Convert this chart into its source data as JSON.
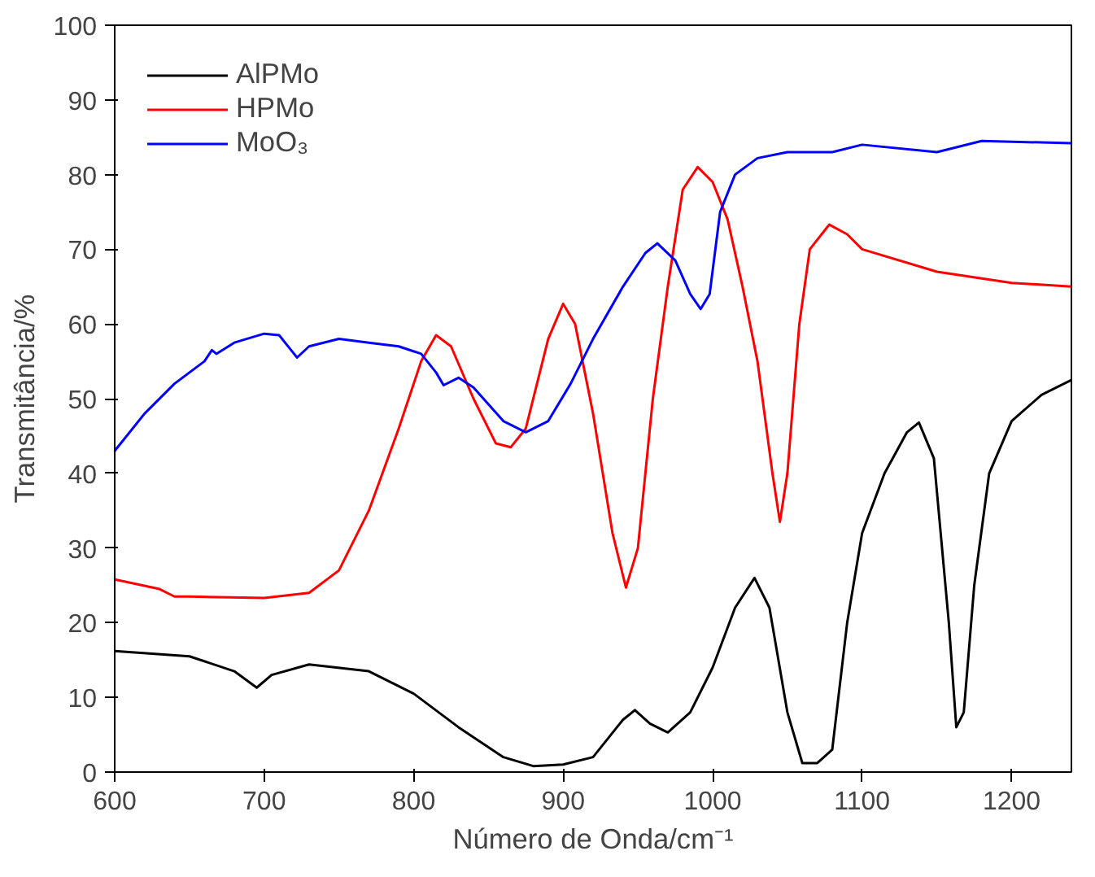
{
  "chart_data": {
    "type": "line",
    "xlabel": "Número de Onda/cm⁻¹",
    "ylabel": "Transmitância/%",
    "xlim": [
      600,
      1240
    ],
    "ylim": [
      0,
      100
    ],
    "xticks": [
      600,
      700,
      800,
      900,
      1000,
      1100,
      1200
    ],
    "yticks": [
      0,
      10,
      20,
      30,
      40,
      50,
      60,
      70,
      80,
      90,
      100
    ],
    "grid": false,
    "legend": "top left",
    "line_style": "solid",
    "series": [
      {
        "name": "AlPMo",
        "color": "#000000",
        "x": [
          600,
          650,
          680,
          695,
          705,
          730,
          770,
          800,
          830,
          860,
          880,
          900,
          920,
          940,
          948,
          958,
          970,
          985,
          1000,
          1015,
          1028,
          1038,
          1050,
          1060,
          1070,
          1080,
          1090,
          1100,
          1115,
          1130,
          1138,
          1148,
          1158,
          1163,
          1168,
          1175,
          1185,
          1200,
          1220,
          1240
        ],
        "values": [
          16.2,
          15.5,
          13.5,
          11.3,
          13,
          14.4,
          13.5,
          10.5,
          6,
          2,
          0.8,
          1,
          2,
          7,
          8.3,
          6.5,
          5.3,
          8,
          14,
          22,
          26,
          22,
          8,
          1.2,
          1.2,
          3,
          20,
          32,
          40,
          45.5,
          46.8,
          42,
          20,
          6,
          8,
          25,
          40,
          47,
          50.5,
          52.5
        ]
      },
      {
        "name": "HPMo",
        "color": "#ff0000",
        "x": [
          600,
          630,
          640,
          650,
          700,
          730,
          750,
          770,
          790,
          805,
          815,
          825,
          840,
          855,
          865,
          875,
          890,
          900,
          908,
          920,
          933,
          942,
          950,
          960,
          970,
          980,
          990,
          1000,
          1010,
          1020,
          1030,
          1040,
          1045,
          1050,
          1058,
          1065,
          1078,
          1090,
          1100,
          1150,
          1200,
          1240
        ],
        "values": [
          25.8,
          24.5,
          23.5,
          23.5,
          23.3,
          24,
          27,
          35,
          46,
          55,
          58.5,
          57,
          50,
          44,
          43.5,
          46,
          58,
          62.7,
          60,
          48,
          32,
          24.7,
          30,
          50,
          65,
          78,
          81,
          79,
          74,
          65,
          55,
          40,
          33.5,
          40,
          60,
          70,
          73.3,
          72,
          70,
          67,
          65.5,
          65
        ]
      },
      {
        "name": "MoO₃",
        "color": "#0000ff",
        "x": [
          600,
          620,
          640,
          660,
          665,
          668,
          680,
          700,
          710,
          718,
          722,
          730,
          750,
          770,
          790,
          805,
          815,
          820,
          830,
          840,
          860,
          875,
          890,
          905,
          920,
          940,
          955,
          963,
          975,
          985,
          992,
          998,
          1005,
          1015,
          1030,
          1050,
          1080,
          1100,
          1150,
          1180,
          1240
        ],
        "values": [
          43,
          48,
          52,
          55,
          56.5,
          56,
          57.5,
          58.7,
          58.5,
          56.5,
          55.5,
          57,
          58,
          57.5,
          57,
          56,
          53.5,
          51.8,
          52.8,
          51.5,
          47,
          45.5,
          47,
          52,
          58,
          65,
          69.5,
          70.8,
          68.5,
          64,
          62,
          64,
          75,
          80,
          82.2,
          83,
          83,
          84,
          83,
          84.5,
          84.2
        ]
      }
    ]
  }
}
